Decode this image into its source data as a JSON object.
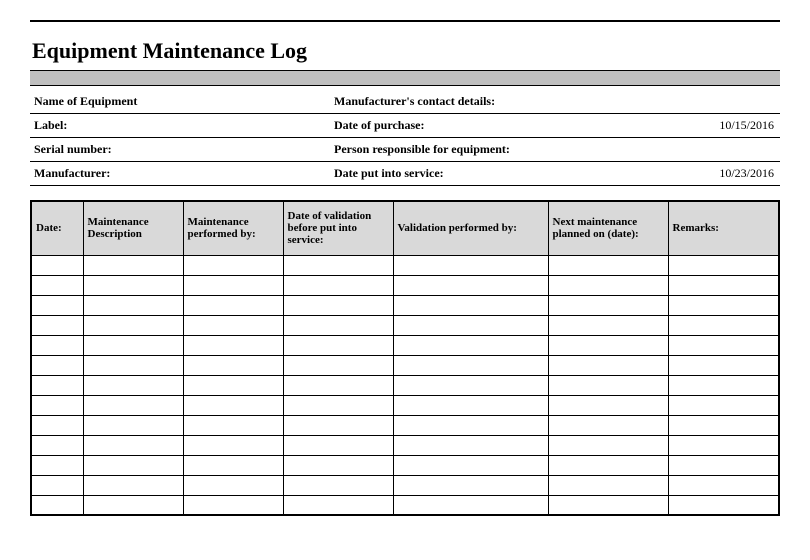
{
  "title": "Equipment Maintenance Log",
  "info_rows": [
    {
      "l1": "Name of Equipment",
      "v1": "",
      "l2": "Manufacturer's contact details:",
      "v2": ""
    },
    {
      "l1": "Label:",
      "v1": "",
      "l2": "Date of purchase:",
      "v2": "10/15/2016"
    },
    {
      "l1": "Serial number:",
      "v1": "",
      "l2": "Person responsible for equipment:",
      "v2": ""
    },
    {
      "l1": "Manufacturer:",
      "v1": "",
      "l2": "Date put into service:",
      "v2": "10/23/2016"
    }
  ],
  "log_columns": [
    "Date:",
    "Maintenance Description",
    "Maintenance performed by:",
    "Date of validation before put into service:",
    "Validation performed by:",
    "Next maintenance planned on (date):",
    "Remarks:"
  ],
  "log_col_widths": [
    "52px",
    "100px",
    "100px",
    "110px",
    "155px",
    "120px",
    "auto"
  ],
  "row_count": 13,
  "colors": {
    "title_bar": "#bfbfbf",
    "header_bg": "#d9d9d9",
    "border": "#000000",
    "background": "#ffffff"
  }
}
